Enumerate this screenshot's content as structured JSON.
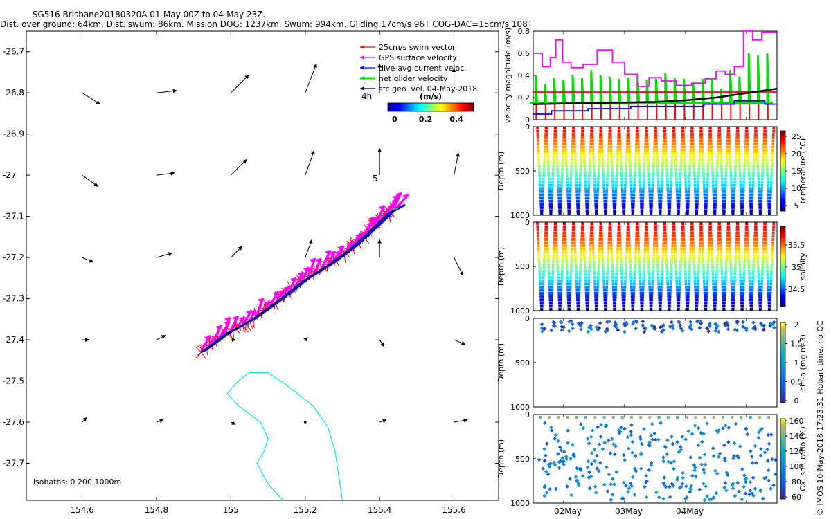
{
  "title": {
    "line1": "SG516 Brisbane20180320A 01-May 00Z to 04-May 23Z.",
    "line2": "Dist. over ground: 64km. Dist. swum: 86km. Mission DOG: 1237km. Swum: 994km. Gliding 17cm/s 96T COG-DAC=15cm/s 108T"
  },
  "side_credit": "© IMOS 10-May-2018 17:23:31 Hobart time, no QC",
  "colors": {
    "swim": "#ff0000",
    "gps": "#ff00ff",
    "dac": "#0000ff",
    "net": "#00dd00",
    "geo": "#000000",
    "isobath": "#00e5ee"
  },
  "chart_data": [
    {
      "type": "scatter",
      "name": "map",
      "xlim": [
        154.45,
        155.72
      ],
      "ylim": [
        -27.79,
        -26.65
      ],
      "xticks": [
        154.6,
        154.8,
        155,
        155.2,
        155.4,
        155.6
      ],
      "xtick_labels": [
        "154.6",
        "154.8",
        "155",
        "155.2",
        "155.4",
        "155.6"
      ],
      "yticks": [
        -26.7,
        -26.8,
        -26.9,
        -27,
        -27.1,
        -27.2,
        -27.3,
        -27.4,
        -27.5,
        -27.6,
        -27.7
      ],
      "ytick_labels": [
        "-26.7",
        "-26.8",
        "-26.9",
        "-27",
        "-27.1",
        "-27.2",
        "-27.3",
        "-27.4",
        "-27.5",
        "-27.6",
        "-27.7"
      ],
      "legend": [
        {
          "label": "25cm/s swim vector",
          "color": "#ff0000"
        },
        {
          "label": "GPS surface velocity",
          "color": "#ff00ff"
        },
        {
          "label": "dive-avg current veloc.",
          "color": "#0000ff"
        },
        {
          "label": "net glider velocity",
          "color": "#00dd00"
        },
        {
          "label": "sfc geo. vel. 04-May-2018",
          "color": "#000000"
        }
      ],
      "colorbar": {
        "label": "(m/s)",
        "ticks": [
          "0",
          "0.2",
          "0.4"
        ],
        "range": [
          0,
          0.5
        ]
      },
      "annotations": {
        "age_label": "4h",
        "five_label": "5",
        "isobath_label": "isobaths: 0   200  1000m"
      },
      "glider_track": {
        "lon": [
          154.92,
          154.98,
          155.05,
          155.12,
          155.19,
          155.26,
          155.32,
          155.38,
          155.42,
          155.45
        ],
        "lat": [
          -27.43,
          -27.39,
          -27.355,
          -27.31,
          -27.26,
          -27.22,
          -27.18,
          -27.13,
          -27.095,
          -27.08
        ]
      },
      "geo_vectors": [
        {
          "lon": 154.6,
          "lat": -26.8,
          "u": 0.08,
          "v": -0.05
        },
        {
          "lon": 154.8,
          "lat": -26.8,
          "u": 0.09,
          "v": 0.01
        },
        {
          "lon": 155.0,
          "lat": -26.8,
          "u": 0.08,
          "v": 0.08
        },
        {
          "lon": 155.2,
          "lat": -26.8,
          "u": 0.05,
          "v": 0.13
        },
        {
          "lon": 155.4,
          "lat": -26.8,
          "u": 0.0,
          "v": 0.13
        },
        {
          "lon": 155.6,
          "lat": -26.8,
          "u": 0.0,
          "v": 0.11
        },
        {
          "lon": 154.6,
          "lat": -27.0,
          "u": 0.07,
          "v": -0.05
        },
        {
          "lon": 154.8,
          "lat": -27.0,
          "u": 0.08,
          "v": 0.01
        },
        {
          "lon": 155.0,
          "lat": -27.0,
          "u": 0.07,
          "v": 0.07
        },
        {
          "lon": 155.2,
          "lat": -27.0,
          "u": 0.04,
          "v": 0.11
        },
        {
          "lon": 155.4,
          "lat": -27.0,
          "u": 0.0,
          "v": 0.12
        },
        {
          "lon": 155.6,
          "lat": -27.0,
          "u": 0.02,
          "v": 0.1
        },
        {
          "lon": 154.6,
          "lat": -27.2,
          "u": 0.05,
          "v": -0.02
        },
        {
          "lon": 154.8,
          "lat": -27.2,
          "u": 0.07,
          "v": 0.02
        },
        {
          "lon": 155.0,
          "lat": -27.2,
          "u": 0.05,
          "v": 0.05
        },
        {
          "lon": 155.2,
          "lat": -27.2,
          "u": 0.03,
          "v": 0.08
        },
        {
          "lon": 155.4,
          "lat": -27.2,
          "u": 0.0,
          "v": 0.08
        },
        {
          "lon": 155.6,
          "lat": -27.2,
          "u": 0.04,
          "v": -0.08
        },
        {
          "lon": 154.6,
          "lat": -27.4,
          "u": 0.03,
          "v": 0.0
        },
        {
          "lon": 154.8,
          "lat": -27.4,
          "u": 0.04,
          "v": 0.02
        },
        {
          "lon": 155.0,
          "lat": -27.4,
          "u": 0.02,
          "v": 0.0
        },
        {
          "lon": 155.2,
          "lat": -27.4,
          "u": 0.01,
          "v": 0.01
        },
        {
          "lon": 155.4,
          "lat": -27.4,
          "u": 0.02,
          "v": -0.03
        },
        {
          "lon": 155.6,
          "lat": -27.4,
          "u": 0.05,
          "v": -0.02
        },
        {
          "lon": 154.6,
          "lat": -27.6,
          "u": 0.02,
          "v": 0.02
        },
        {
          "lon": 154.8,
          "lat": -27.6,
          "u": 0.03,
          "v": 0.01
        },
        {
          "lon": 155.0,
          "lat": -27.6,
          "u": 0.02,
          "v": -0.01
        },
        {
          "lon": 155.2,
          "lat": -27.6,
          "u": 0.0,
          "v": 0.0
        },
        {
          "lon": 155.4,
          "lat": -27.6,
          "u": 0.03,
          "v": 0.01
        },
        {
          "lon": 155.6,
          "lat": -27.6,
          "u": 0.06,
          "v": 0.01
        }
      ],
      "isobath": {
        "lon": [
          155.02,
          155.05,
          155.1,
          155.15,
          155.22,
          155.26,
          155.28,
          155.29,
          155.3
        ],
        "lat": [
          -27.5,
          -27.48,
          -27.48,
          -27.51,
          -27.56,
          -27.61,
          -27.67,
          -27.73,
          -27.79
        ],
        "lon_inner": [
          155.02,
          154.99,
          155.02,
          155.08,
          155.1,
          155.09,
          155.07,
          155.1,
          155.14
        ],
        "lat_inner": [
          -27.5,
          -27.53,
          -27.56,
          -27.6,
          -27.64,
          -27.67,
          -27.7,
          -27.75,
          -27.79
        ]
      }
    },
    {
      "type": "line",
      "name": "velocity",
      "ylabel": "velocity magnitude (m/s)",
      "ylim": [
        0,
        0.8
      ],
      "yticks": [
        "0",
        "0.2",
        "0.4",
        "0.6",
        "0.8"
      ],
      "xlim": [
        0,
        4
      ],
      "series": [
        {
          "name": "GPS surface velocity",
          "color": "#ff00ff",
          "x": [
            0,
            0.15,
            0.15,
            0.28,
            0.28,
            0.37,
            0.37,
            0.48,
            0.48,
            0.62,
            0.62,
            0.82,
            0.82,
            1.05,
            1.05,
            1.3,
            1.3,
            1.5,
            1.5,
            1.72,
            1.72,
            1.9,
            1.9,
            2.1,
            2.1,
            2.35,
            2.35,
            2.6,
            2.6,
            2.82,
            2.82,
            3.0,
            3.0,
            3.15,
            3.15,
            3.3,
            3.3,
            3.45,
            3.45,
            3.6,
            3.6,
            3.75,
            3.75,
            4.0
          ],
          "y": [
            0.6,
            0.6,
            0.48,
            0.48,
            0.56,
            0.56,
            0.72,
            0.72,
            0.52,
            0.52,
            0.47,
            0.47,
            0.5,
            0.5,
            0.63,
            0.63,
            0.52,
            0.52,
            0.41,
            0.41,
            0.3,
            0.3,
            0.38,
            0.38,
            0.35,
            0.35,
            0.31,
            0.31,
            0.33,
            0.33,
            0.37,
            0.37,
            0.44,
            0.44,
            0.41,
            0.41,
            0.48,
            0.48,
            0.8,
            0.8,
            0.72,
            0.72,
            0.79,
            0.79
          ]
        },
        {
          "name": "swim",
          "color": "#ff0000",
          "x": [
            0,
            4
          ],
          "y": [
            0.25,
            0.25
          ]
        },
        {
          "name": "dive-avg current",
          "color": "#0000ff",
          "x": [
            0,
            0.3,
            0.3,
            0.9,
            0.9,
            1.6,
            1.6,
            2.2,
            2.2,
            2.8,
            2.8,
            3.3,
            3.3,
            3.8,
            3.8,
            4.0
          ],
          "y": [
            0.05,
            0.05,
            0.08,
            0.08,
            0.1,
            0.1,
            0.12,
            0.12,
            0.12,
            0.12,
            0.14,
            0.14,
            0.17,
            0.17,
            0.14,
            0.14
          ]
        },
        {
          "name": "sfc geo",
          "color": "#000000",
          "x": [
            0,
            0.5,
            1.0,
            1.5,
            2.0,
            2.5,
            3.0,
            3.5,
            4.0
          ],
          "y": [
            0.14,
            0.145,
            0.15,
            0.155,
            0.16,
            0.175,
            0.2,
            0.24,
            0.28
          ]
        }
      ],
      "spikes_green": {
        "count": 26,
        "base": 0.15,
        "peaks": [
          0.4,
          0.32,
          0.38,
          0.36,
          0.4,
          0.38,
          0.45,
          0.4,
          0.39,
          0.37,
          0.38,
          0.4,
          0.36,
          0.37,
          0.42,
          0.38,
          0.37,
          0.33,
          0.37,
          0.36,
          0.28,
          0.45,
          0.39,
          0.6,
          0.58,
          0.6
        ]
      },
      "spikes_red": {
        "count": 26,
        "base": 0.25
      }
    },
    {
      "type": "heatmap",
      "name": "temperature",
      "ylabel": "Depth (m)",
      "yticks": [
        "0",
        "500",
        "1000"
      ],
      "clabel": "temperature (°C)",
      "cticks": [
        "25",
        "20",
        "15",
        "10",
        "5"
      ],
      "crange": [
        4,
        27
      ],
      "dives": 26
    },
    {
      "type": "heatmap",
      "name": "salinity",
      "ylabel": "Depth (m)",
      "yticks": [
        "0",
        "500",
        "1000"
      ],
      "clabel": "salinity",
      "cticks": [
        "35.5",
        "35",
        "34.5"
      ],
      "crange": [
        34.3,
        35.8
      ],
      "dives": 26
    },
    {
      "type": "scatter",
      "name": "chla",
      "ylabel": "Depth (m)",
      "yticks": [
        "0",
        "500",
        "1000"
      ],
      "clabel": "chl-a (mg m-3)",
      "cticks": [
        "2",
        "1.5",
        "1",
        "0.5",
        "0"
      ],
      "crange": [
        0,
        2
      ],
      "dives": 26
    },
    {
      "type": "scatter",
      "name": "oxygen",
      "ylabel": "Depth (m)",
      "yticks": [
        "0",
        "500",
        "1000"
      ],
      "clabel": "Ox. sat. ratio (%)",
      "cticks": [
        "160",
        "140",
        "120",
        "100",
        "80",
        "60"
      ],
      "crange": [
        60,
        170
      ],
      "dives": 26,
      "xtick_labels": [
        "02May",
        "03May",
        "04May"
      ]
    }
  ]
}
